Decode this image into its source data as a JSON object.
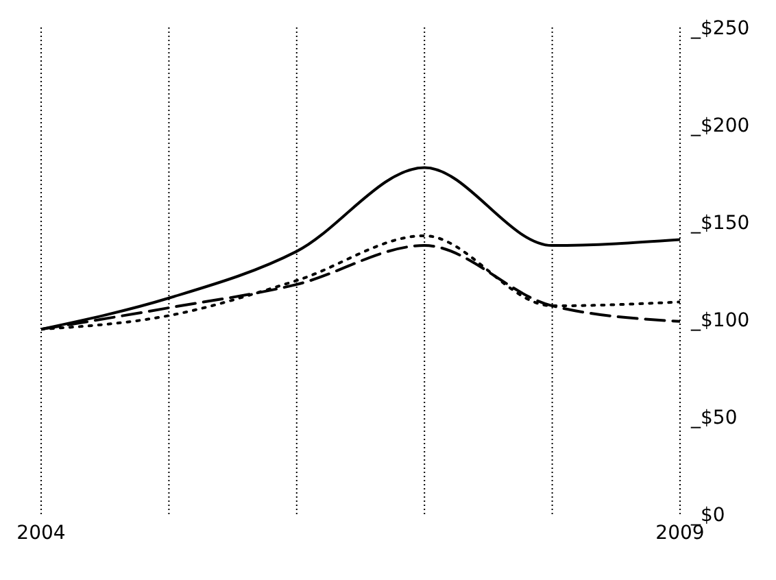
{
  "chart_data": {
    "type": "line",
    "x": [
      2004,
      2005,
      2006,
      2007,
      2008,
      2009
    ],
    "series": [
      {
        "color": "#000000",
        "line_style": "solid",
        "values": [
          95,
          111,
          135,
          178,
          138,
          141
        ]
      },
      {
        "color": "#000000",
        "line_style": "dashed",
        "values": [
          95,
          106,
          118,
          138,
          107,
          99
        ]
      },
      {
        "color": "#000000",
        "line_style": "dotted",
        "values": [
          95,
          102,
          120,
          143,
          107,
          109
        ]
      }
    ],
    "xlim": [
      2004,
      2009
    ],
    "xticks": [
      2004,
      {
        "value": 2005,
        "label": null
      },
      {
        "value": 2006,
        "label": null
      },
      {
        "value": 2007,
        "label": null
      },
      {
        "value": 2008,
        "label": null
      },
      2009
    ],
    "ylim": [
      0,
      250
    ],
    "yticks": [
      {
        "value": 0,
        "label": "_$0"
      },
      {
        "value": 50,
        "label": "_$50"
      },
      {
        "value": 100,
        "label": "_$100"
      },
      {
        "value": 150,
        "label": "_$150"
      },
      {
        "value": 200,
        "label": "_$200"
      },
      {
        "value": 250,
        "label": "_$250"
      }
    ],
    "grid": "x",
    "marker": "none",
    "legend": false
  }
}
